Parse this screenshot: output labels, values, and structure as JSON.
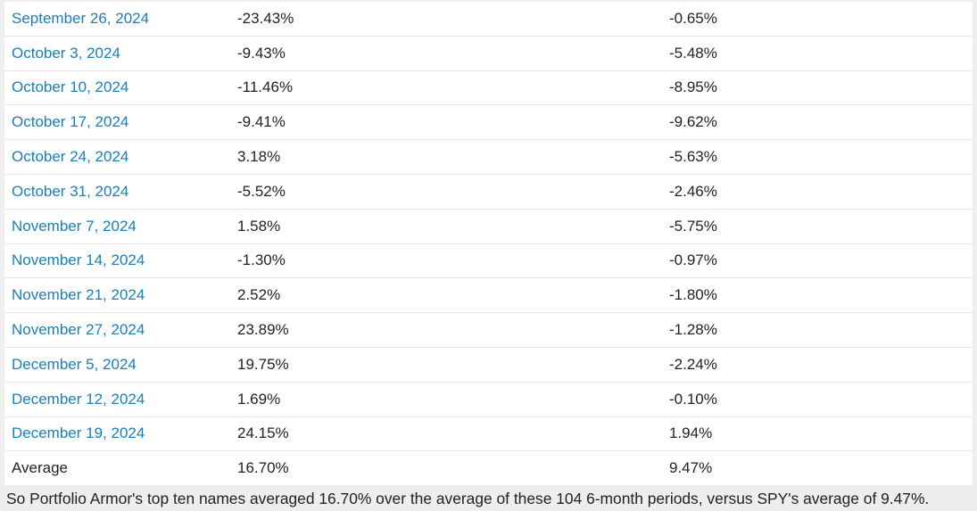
{
  "rows": [
    {
      "date": "September 26, 2024",
      "portfolio": "-23.43%",
      "spy": "-0.65%"
    },
    {
      "date": "October 3, 2024",
      "portfolio": "-9.43%",
      "spy": "-5.48%"
    },
    {
      "date": "October 10, 2024",
      "portfolio": "-11.46%",
      "spy": "-8.95%"
    },
    {
      "date": "October 17, 2024",
      "portfolio": "-9.41%",
      "spy": "-9.62%"
    },
    {
      "date": "October 24, 2024",
      "portfolio": "3.18%",
      "spy": "-5.63%"
    },
    {
      "date": "October 31, 2024",
      "portfolio": "-5.52%",
      "spy": "-2.46%"
    },
    {
      "date": "November 7, 2024",
      "portfolio": "1.58%",
      "spy": "-5.75%"
    },
    {
      "date": "November 14, 2024",
      "portfolio": "-1.30%",
      "spy": "-0.97%"
    },
    {
      "date": "November 21, 2024",
      "portfolio": "2.52%",
      "spy": "-1.80%"
    },
    {
      "date": "November 27, 2024",
      "portfolio": "23.89%",
      "spy": "-1.28%"
    },
    {
      "date": "December 5, 2024",
      "portfolio": "19.75%",
      "spy": "-2.24%"
    },
    {
      "date": "December 12, 2024",
      "portfolio": "1.69%",
      "spy": "-0.10%"
    },
    {
      "date": "December 19, 2024",
      "portfolio": "24.15%",
      "spy": "1.94%"
    }
  ],
  "average": {
    "label": "Average",
    "portfolio": "16.70%",
    "spy": "9.47%"
  },
  "summary": "So Portfolio Armor's top ten names averaged 16.70% over the average of these 104 6-month periods, versus SPY's average of 9.47%.",
  "colors": {
    "link": "#1a7fb8",
    "text": "#222222",
    "background": "#eeeeee",
    "table_bg": "#ffffff",
    "row_border": "#e4e4e4"
  }
}
